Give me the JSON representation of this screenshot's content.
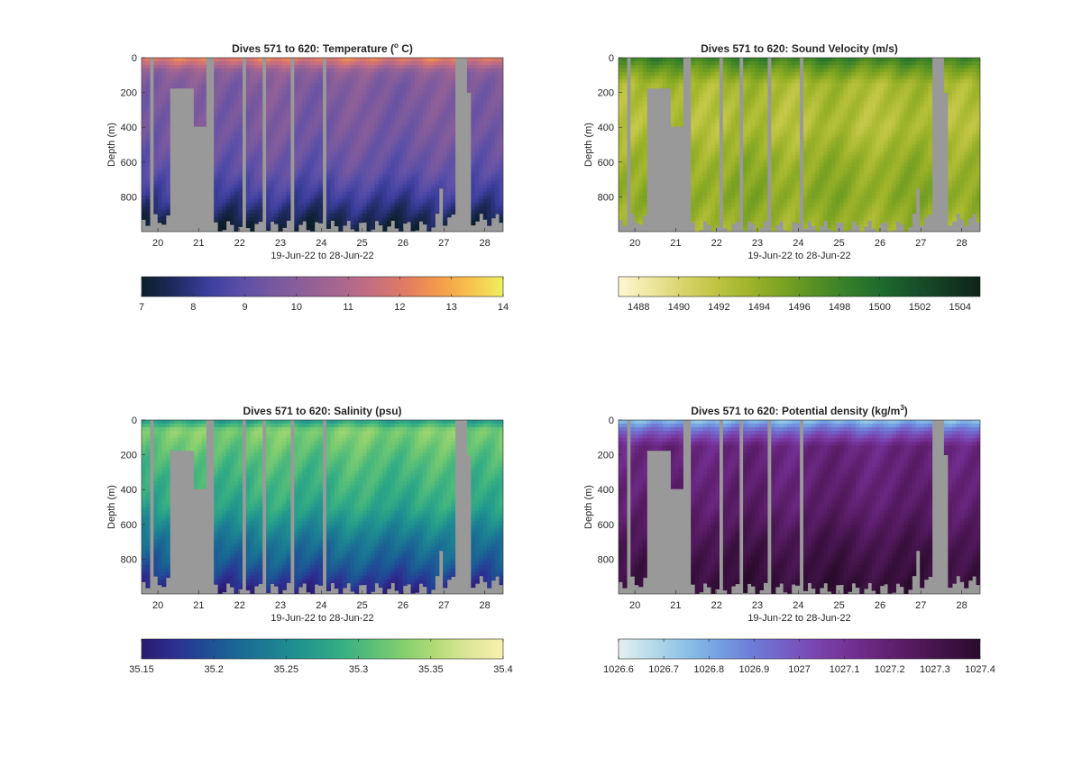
{
  "chart_data": [
    {
      "type": "heatmap",
      "title": "Dives 571 to 620: Temperature (",
      "title_sup": "o",
      "title_after": " C)",
      "ylabel": "Depth (m)",
      "xlabel": "19-Jun-22 to 28-Jun-22",
      "xlim": [
        19.6,
        28.45
      ],
      "ylim": [
        0,
        1000
      ],
      "y_reversed": true,
      "xticks": [
        20,
        21,
        22,
        23,
        24,
        25,
        26,
        27,
        28
      ],
      "yticks": [
        0,
        200,
        400,
        600,
        800
      ],
      "missing_color": "#999999",
      "colormap": [
        "#0b1f2b",
        "#1f2a5f",
        "#3b3d9c",
        "#5a4fa8",
        "#76589f",
        "#8e6098",
        "#a8678f",
        "#c46e80",
        "#e07a64",
        "#f39a4b",
        "#f6c24c",
        "#efef5f"
      ],
      "clim": [
        7,
        14
      ],
      "colorbar_ticks": [
        "7",
        "8",
        "9",
        "10",
        "11",
        "12",
        "13",
        "14"
      ],
      "profile": [
        {
          "depth": 0,
          "value": 12.3
        },
        {
          "depth": 80,
          "value": 10.2
        },
        {
          "depth": 150,
          "value": 9.8
        },
        {
          "depth": 400,
          "value": 9.6
        },
        {
          "depth": 650,
          "value": 9.1
        },
        {
          "depth": 800,
          "value": 8.3
        },
        {
          "depth": 950,
          "value": 7.4
        },
        {
          "depth": 1000,
          "value": 7.1
        }
      ]
    },
    {
      "type": "heatmap",
      "title": "Dives 571 to 620: Sound Velocity (m/s)",
      "ylabel": "Depth (m)",
      "xlabel": "19-Jun-22 to 28-Jun-22",
      "xlim": [
        19.6,
        28.45
      ],
      "ylim": [
        0,
        1000
      ],
      "y_reversed": true,
      "xticks": [
        20,
        21,
        22,
        23,
        24,
        25,
        26,
        27,
        28
      ],
      "yticks": [
        0,
        200,
        400,
        600,
        800
      ],
      "missing_color": "#999999",
      "colormap": [
        "#fdf7d4",
        "#ece79e",
        "#d7d36a",
        "#bdc441",
        "#9db32a",
        "#7aa222",
        "#559024",
        "#347e2a",
        "#1e6a2e",
        "#17512a",
        "#133a22",
        "#0f2218"
      ],
      "clim": [
        1487,
        1505
      ],
      "colorbar_ticks": [
        "1488",
        "1490",
        "1492",
        "1494",
        "1496",
        "1498",
        "1500",
        "1502",
        "1504"
      ],
      "colorbar_tick_values": [
        1488,
        1490,
        1492,
        1494,
        1496,
        1498,
        1500,
        1502,
        1504
      ],
      "profile": [
        {
          "depth": 0,
          "value": 1498.5
        },
        {
          "depth": 60,
          "value": 1496
        },
        {
          "depth": 150,
          "value": 1493
        },
        {
          "depth": 400,
          "value": 1492.5
        },
        {
          "depth": 600,
          "value": 1494
        },
        {
          "depth": 800,
          "value": 1494.5
        },
        {
          "depth": 1000,
          "value": 1493.5
        }
      ]
    },
    {
      "type": "heatmap",
      "title": "Dives 571 to 620: Salinity (psu)",
      "ylabel": "Depth (m)",
      "xlabel": "19-Jun-22 to 28-Jun-22",
      "xlim": [
        19.6,
        28.45
      ],
      "ylim": [
        0,
        1000
      ],
      "y_reversed": true,
      "xticks": [
        20,
        21,
        22,
        23,
        24,
        25,
        26,
        27,
        28
      ],
      "yticks": [
        0,
        200,
        400,
        600,
        800
      ],
      "missing_color": "#999999",
      "colormap": [
        "#2a1a6e",
        "#2d2f91",
        "#1f4e95",
        "#1a6a94",
        "#1c8092",
        "#22978e",
        "#33ac84",
        "#59bf78",
        "#86cf6f",
        "#b6dc78",
        "#dfe79a",
        "#f8efae"
      ],
      "clim": [
        35.15,
        35.4
      ],
      "colorbar_ticks": [
        "35.15",
        "35.2",
        "35.25",
        "35.3",
        "35.35",
        "35.4"
      ],
      "profile": [
        {
          "depth": 0,
          "value": 35.27
        },
        {
          "depth": 60,
          "value": 35.33
        },
        {
          "depth": 200,
          "value": 35.31
        },
        {
          "depth": 500,
          "value": 35.28
        },
        {
          "depth": 700,
          "value": 35.23
        },
        {
          "depth": 850,
          "value": 35.2
        },
        {
          "depth": 1000,
          "value": 35.16
        }
      ]
    },
    {
      "type": "heatmap",
      "title": "Dives 571 to 620: Potential density (kg/m",
      "title_sup": "3",
      "title_after": ")",
      "ylabel": "Depth (m)",
      "xlabel": "19-Jun-22 to 28-Jun-22",
      "xlim": [
        19.6,
        28.45
      ],
      "ylim": [
        0,
        1000
      ],
      "y_reversed": true,
      "xticks": [
        20,
        21,
        22,
        23,
        24,
        25,
        26,
        27,
        28
      ],
      "yticks": [
        0,
        200,
        400,
        600,
        800
      ],
      "missing_color": "#999999",
      "colormap": [
        "#e4f0ef",
        "#b7daea",
        "#8ec3e6",
        "#75a2e2",
        "#6e7fd8",
        "#7461c6",
        "#7a45b0",
        "#743195",
        "#652378",
        "#521a5d",
        "#3e1244",
        "#2a0b2c"
      ],
      "clim": [
        1026.6,
        1027.4
      ],
      "colorbar_ticks": [
        "1026.6",
        "1026.7",
        "1026.8",
        "1026.9",
        "1027",
        "1027.1",
        "1027.2",
        "1027.3",
        "1027.4"
      ],
      "profile": [
        {
          "depth": 0,
          "value": 1026.75
        },
        {
          "depth": 60,
          "value": 1026.95
        },
        {
          "depth": 150,
          "value": 1027.17
        },
        {
          "depth": 500,
          "value": 1027.22
        },
        {
          "depth": 700,
          "value": 1027.3
        },
        {
          "depth": 900,
          "value": 1027.35
        },
        {
          "depth": 1000,
          "value": 1027.38
        }
      ]
    }
  ]
}
